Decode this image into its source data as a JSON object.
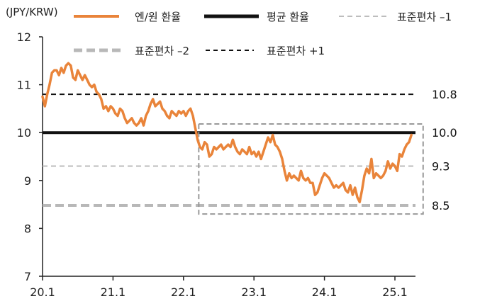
{
  "chart_data": {
    "type": "line",
    "unit_label": "(JPY/KRW)",
    "ylim": [
      7,
      12
    ],
    "y_ticks": [
      "7",
      "8",
      "9",
      "10",
      "11",
      "12"
    ],
    "x_ticks": [
      {
        "label": "20.1",
        "x": 0
      },
      {
        "label": "21.1",
        "x": 12
      },
      {
        "label": "22.1",
        "x": 24
      },
      {
        "label": "23.1",
        "x": 36
      },
      {
        "label": "24.1",
        "x": 48
      },
      {
        "label": "25.1",
        "x": 60
      }
    ],
    "xlim": [
      0,
      63.5
    ],
    "series": [
      {
        "name": "엔/원 환율",
        "color": "#e9843a",
        "points": [
          [
            0.0,
            10.75
          ],
          [
            0.4,
            10.55
          ],
          [
            0.8,
            10.8
          ],
          [
            1.2,
            11.0
          ],
          [
            1.6,
            11.25
          ],
          [
            2.0,
            11.3
          ],
          [
            2.4,
            11.3
          ],
          [
            2.8,
            11.2
          ],
          [
            3.2,
            11.35
          ],
          [
            3.6,
            11.25
          ],
          [
            4.0,
            11.4
          ],
          [
            4.4,
            11.45
          ],
          [
            4.8,
            11.4
          ],
          [
            5.2,
            11.15
          ],
          [
            5.6,
            11.1
          ],
          [
            6.0,
            11.3
          ],
          [
            6.4,
            11.2
          ],
          [
            6.8,
            11.1
          ],
          [
            7.2,
            11.2
          ],
          [
            7.6,
            11.1
          ],
          [
            8.0,
            11.0
          ],
          [
            8.4,
            10.95
          ],
          [
            8.8,
            11.0
          ],
          [
            9.2,
            10.85
          ],
          [
            9.6,
            10.8
          ],
          [
            10.0,
            10.7
          ],
          [
            10.4,
            10.5
          ],
          [
            10.8,
            10.55
          ],
          [
            11.2,
            10.45
          ],
          [
            11.6,
            10.55
          ],
          [
            12.0,
            10.5
          ],
          [
            12.4,
            10.4
          ],
          [
            12.8,
            10.35
          ],
          [
            13.2,
            10.5
          ],
          [
            13.6,
            10.45
          ],
          [
            14.0,
            10.3
          ],
          [
            14.4,
            10.2
          ],
          [
            14.8,
            10.25
          ],
          [
            15.2,
            10.3
          ],
          [
            15.6,
            10.2
          ],
          [
            16.0,
            10.15
          ],
          [
            16.4,
            10.2
          ],
          [
            16.8,
            10.3
          ],
          [
            17.2,
            10.15
          ],
          [
            17.6,
            10.35
          ],
          [
            18.0,
            10.45
          ],
          [
            18.4,
            10.6
          ],
          [
            18.8,
            10.7
          ],
          [
            19.2,
            10.55
          ],
          [
            19.6,
            10.6
          ],
          [
            20.0,
            10.65
          ],
          [
            20.4,
            10.5
          ],
          [
            20.8,
            10.45
          ],
          [
            21.2,
            10.35
          ],
          [
            21.6,
            10.3
          ],
          [
            22.0,
            10.45
          ],
          [
            22.4,
            10.4
          ],
          [
            22.8,
            10.35
          ],
          [
            23.2,
            10.45
          ],
          [
            23.6,
            10.4
          ],
          [
            24.0,
            10.45
          ],
          [
            24.4,
            10.35
          ],
          [
            24.8,
            10.45
          ],
          [
            25.2,
            10.5
          ],
          [
            25.6,
            10.35
          ],
          [
            26.0,
            10.1
          ],
          [
            26.4,
            9.85
          ],
          [
            26.8,
            9.7
          ],
          [
            27.2,
            9.65
          ],
          [
            27.6,
            9.8
          ],
          [
            28.0,
            9.75
          ],
          [
            28.4,
            9.5
          ],
          [
            28.8,
            9.55
          ],
          [
            29.2,
            9.7
          ],
          [
            29.6,
            9.65
          ],
          [
            30.0,
            9.7
          ],
          [
            30.4,
            9.75
          ],
          [
            30.8,
            9.65
          ],
          [
            31.2,
            9.7
          ],
          [
            31.6,
            9.75
          ],
          [
            32.0,
            9.7
          ],
          [
            32.4,
            9.85
          ],
          [
            32.8,
            9.7
          ],
          [
            33.2,
            9.6
          ],
          [
            33.6,
            9.55
          ],
          [
            34.0,
            9.65
          ],
          [
            34.4,
            9.6
          ],
          [
            34.8,
            9.55
          ],
          [
            35.2,
            9.7
          ],
          [
            35.6,
            9.55
          ],
          [
            36.0,
            9.6
          ],
          [
            36.4,
            9.5
          ],
          [
            36.8,
            9.6
          ],
          [
            37.2,
            9.45
          ],
          [
            37.6,
            9.6
          ],
          [
            38.0,
            9.75
          ],
          [
            38.4,
            9.9
          ],
          [
            38.8,
            9.8
          ],
          [
            39.2,
            9.95
          ],
          [
            39.6,
            9.75
          ],
          [
            40.0,
            9.7
          ],
          [
            40.4,
            9.6
          ],
          [
            40.8,
            9.45
          ],
          [
            41.2,
            9.2
          ],
          [
            41.6,
            9.0
          ],
          [
            42.0,
            9.15
          ],
          [
            42.4,
            9.05
          ],
          [
            42.8,
            9.1
          ],
          [
            43.2,
            9.05
          ],
          [
            43.6,
            9.0
          ],
          [
            44.0,
            9.2
          ],
          [
            44.4,
            9.05
          ],
          [
            44.8,
            9.0
          ],
          [
            45.2,
            9.05
          ],
          [
            45.6,
            8.95
          ],
          [
            46.0,
            8.95
          ],
          [
            46.4,
            8.7
          ],
          [
            46.8,
            8.75
          ],
          [
            47.2,
            8.9
          ],
          [
            47.6,
            9.05
          ],
          [
            48.0,
            9.15
          ],
          [
            48.4,
            9.1
          ],
          [
            48.8,
            9.05
          ],
          [
            49.2,
            8.95
          ],
          [
            49.6,
            8.85
          ],
          [
            50.0,
            8.9
          ],
          [
            50.4,
            8.85
          ],
          [
            50.8,
            8.9
          ],
          [
            51.2,
            8.95
          ],
          [
            51.6,
            8.8
          ],
          [
            52.0,
            8.75
          ],
          [
            52.4,
            8.9
          ],
          [
            52.8,
            8.7
          ],
          [
            53.2,
            8.85
          ],
          [
            53.6,
            8.65
          ],
          [
            54.0,
            8.55
          ],
          [
            54.4,
            8.8
          ],
          [
            54.8,
            9.1
          ],
          [
            55.2,
            9.25
          ],
          [
            55.6,
            9.15
          ],
          [
            56.0,
            9.45
          ],
          [
            56.4,
            9.05
          ],
          [
            56.8,
            9.15
          ],
          [
            57.2,
            9.1
          ],
          [
            57.6,
            9.05
          ],
          [
            58.0,
            9.1
          ],
          [
            58.4,
            9.2
          ],
          [
            58.8,
            9.4
          ],
          [
            59.2,
            9.25
          ],
          [
            59.6,
            9.35
          ],
          [
            60.0,
            9.3
          ],
          [
            60.4,
            9.2
          ],
          [
            60.8,
            9.55
          ],
          [
            61.2,
            9.5
          ],
          [
            61.6,
            9.65
          ],
          [
            62.0,
            9.75
          ],
          [
            62.4,
            9.8
          ],
          [
            62.8,
            9.95
          ]
        ]
      },
      {
        "name": "평균 환율",
        "color": "#111111",
        "value": 10.0,
        "dash": "solid"
      },
      {
        "name": "표준편차 –1",
        "color": "#bdbdbd",
        "value": 9.3,
        "dash": "dash"
      },
      {
        "name": "표준편차 –2",
        "color": "#b8b8b8",
        "value": 8.48,
        "dash": "thick-dash"
      },
      {
        "name": "표준편차 +1",
        "color": "#111111",
        "value": 10.8,
        "dash": "dash"
      }
    ],
    "value_labels": [
      {
        "text": "10.8",
        "y": 10.8
      },
      {
        "text": "10.0",
        "y": 10.0
      },
      {
        "text": "9.3",
        "y": 9.3
      },
      {
        "text": "8.5",
        "y": 8.48
      }
    ],
    "highlight_box": {
      "x0": 26.6,
      "x1": 64.8,
      "y0": 8.3,
      "y1": 10.18,
      "color": "#999999"
    },
    "legend_placement": "top",
    "grid": false
  }
}
